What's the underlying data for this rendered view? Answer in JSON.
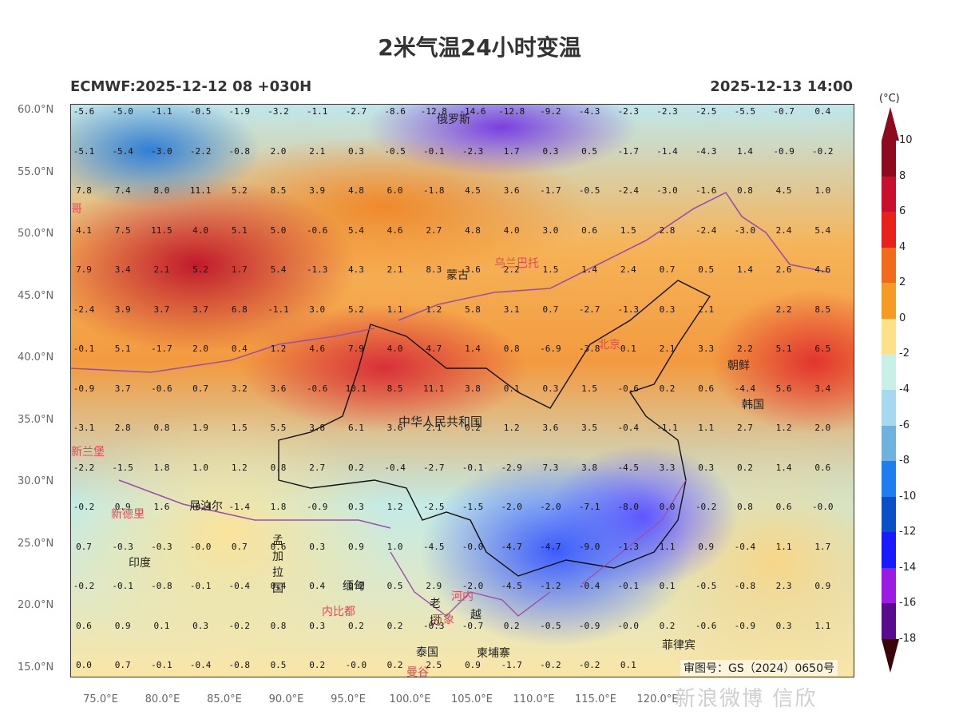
{
  "title": "2米气温24小时变温",
  "subtitle_left": "ECMWF:2025-12-12 08 +030H",
  "subtitle_right": "2025-12-13 14:00",
  "lat_labels": [
    "60.0°N",
    "55.0°N",
    "50.0°N",
    "45.0°N",
    "40.0°N",
    "35.0°N",
    "30.0°N",
    "25.0°N",
    "20.0°N",
    "15.0°N"
  ],
  "lon_labels": [
    "75.0°E",
    "80.0°E",
    "85.0°E",
    "90.0°E",
    "95.0°E",
    "100.0°E",
    "105.0°E",
    "110.0°E",
    "115.0°E",
    "120.0°E"
  ],
  "colorbar": {
    "unit": "(°C)",
    "labels": [
      "10",
      "8",
      "6",
      "4",
      "2",
      "0",
      "-2",
      "-4",
      "-6",
      "-8",
      "-10",
      "-12",
      "-14",
      "-16",
      "-18"
    ],
    "colors": [
      "#8e0a1e",
      "#c8102e",
      "#e8211c",
      "#f26a1b",
      "#f59a24",
      "#fde08a",
      "#c9f0e6",
      "#a6d8f0",
      "#6fb2e0",
      "#1e7df0",
      "#0b4fc8",
      "#1a1aff",
      "#9b1ce0",
      "#5a0a8c",
      "#7a0a14"
    ]
  },
  "place_labels": {
    "russia": "俄罗斯",
    "ulaanbaatar": "乌兰巴托",
    "mongolia": "蒙古",
    "beijing": "北京",
    "north_korea": "朝鲜",
    "south_korea": "韩国",
    "china": "中华人民共和国",
    "new_delhi": "新德里",
    "nepal": "尼泊尔",
    "new_lanbao": "新兰堡",
    "india": "印度",
    "bangladesh": "孟加拉国",
    "myanmar": "缅甸",
    "naypyidaw": "内比都",
    "hanoi": "河内",
    "laos": "老挝",
    "vientiane": "万象",
    "vietnam": "越",
    "cambodia": "柬埔寨",
    "thailand": "泰国",
    "bangkok": "曼谷",
    "philippines": "菲律宾",
    "ulaanbaatar_left": "哥"
  },
  "credit": "审图号：GS（2024）0650号",
  "watermark": "新浪微博 信欣",
  "grid_values": [
    [
      "-5.6",
      "-5.0",
      "-1.1",
      "-0.5",
      "-1.9",
      "-3.2",
      "-1.1",
      "-2.7",
      "-8.6",
      "-12.8",
      "-14.6",
      "-12.8",
      "-9.2",
      "-4.3",
      "-2.3",
      "-2.3",
      "-2.5",
      "-5.5",
      "-0.7",
      "0.4"
    ],
    [
      "-5.1",
      "-5.4",
      "-3.0",
      "-2.2",
      "-0.8",
      "2.0",
      "2.1",
      "0.3",
      "-0.5",
      "-0.1",
      "-2.3",
      "1.7",
      "0.3",
      "0.5",
      "-1.7",
      "-1.4",
      "-4.3",
      "1.4",
      "-0.9",
      "-0.2"
    ],
    [
      "7.8",
      "7.4",
      "8.0",
      "11.1",
      "5.2",
      "8.5",
      "3.9",
      "4.8",
      "6.0",
      "-1.8",
      "4.5",
      "3.6",
      "-1.7",
      "-0.5",
      "-2.4",
      "-3.0",
      "-1.6",
      "0.8",
      "4.5",
      "1.0"
    ],
    [
      "4.1",
      "7.5",
      "11.5",
      "4.0",
      "5.1",
      "5.0",
      "-0.6",
      "5.4",
      "4.6",
      "2.7",
      "4.8",
      "4.0",
      "3.0",
      "0.6",
      "1.5",
      "2.8",
      "-2.4",
      "-3.0",
      "2.4",
      "5.4"
    ],
    [
      "7.9",
      "3.4",
      "2.1",
      "5.2",
      "1.7",
      "5.4",
      "-1.3",
      "4.3",
      "2.1",
      "8.3",
      "3.6",
      "2.2",
      "1.5",
      "1.4",
      "2.4",
      "0.7",
      "0.5",
      "1.4",
      "2.6",
      "4.6"
    ],
    [
      "-2.4",
      "3.9",
      "3.7",
      "3.7",
      "6.8",
      "-1.1",
      "3.0",
      "5.2",
      "1.1",
      "1.2",
      "5.8",
      "3.1",
      "0.7",
      "-2.7",
      "-1.3",
      "0.3",
      "2.1",
      "",
      "2.2",
      "8.5"
    ],
    [
      "-0.1",
      "5.1",
      "-1.7",
      "2.0",
      "0.4",
      "1.2",
      "4.6",
      "7.9",
      "4.0",
      "4.7",
      "1.4",
      "0.8",
      "-6.9",
      "-3.8",
      "0.1",
      "2.1",
      "3.3",
      "2.2",
      "5.1",
      "6.5"
    ],
    [
      "-0.9",
      "3.7",
      "-0.6",
      "0.7",
      "3.2",
      "3.6",
      "-0.6",
      "10.1",
      "8.5",
      "11.1",
      "3.8",
      "0.1",
      "0.3",
      "1.5",
      "-0.6",
      "0.2",
      "0.6",
      "-4.4",
      "5.6",
      "3.4"
    ],
    [
      "-3.1",
      "2.8",
      "0.8",
      "1.9",
      "1.5",
      "5.5",
      "3.8",
      "6.1",
      "3.6",
      "2.1",
      "0.2",
      "1.2",
      "3.6",
      "3.5",
      "-0.4",
      "-1.1",
      "1.1",
      "2.7",
      "1.2",
      "2.0"
    ],
    [
      "-2.2",
      "-1.5",
      "1.8",
      "1.0",
      "1.2",
      "0.8",
      "2.7",
      "0.2",
      "-0.4",
      "-2.7",
      "-0.1",
      "-2.9",
      "7.3",
      "3.8",
      "-4.5",
      "3.3",
      "0.3",
      "0.2",
      "1.4",
      "0.6"
    ],
    [
      "-0.2",
      "0.9",
      "1.6",
      "-0.4",
      "-1.4",
      "1.8",
      "-0.9",
      "0.3",
      "1.2",
      "-2.5",
      "-1.5",
      "-2.0",
      "-2.0",
      "-7.1",
      "-8.0",
      "0.0",
      "-0.2",
      "0.8",
      "0.6",
      "-0.0"
    ],
    [
      "0.7",
      "-0.3",
      "-0.3",
      "-0.0",
      "0.7",
      "0.6",
      "0.3",
      "0.9",
      "1.0",
      "-4.5",
      "-0.0",
      "-4.7",
      "-4.7",
      "-9.0",
      "-1.3",
      "1.1",
      "0.9",
      "-0.4",
      "1.1",
      "1.7"
    ],
    [
      "-0.2",
      "-0.1",
      "-0.8",
      "-0.1",
      "-0.4",
      "0.4",
      "0.4",
      "0.2",
      "0.5",
      "2.9",
      "-2.0",
      "-4.5",
      "-1.2",
      "-0.4",
      "-0.1",
      "0.1",
      "-0.5",
      "-0.8",
      "2.3",
      "0.9"
    ],
    [
      "0.6",
      "0.9",
      "0.1",
      "0.3",
      "-0.2",
      "0.8",
      "0.3",
      "0.2",
      "0.2",
      "-0.3",
      "-0.7",
      "0.2",
      "-0.5",
      "-0.9",
      "-0.0",
      "0.2",
      "-0.6",
      "-0.9",
      "0.3",
      "1.1"
    ],
    [
      "0.0",
      "0.7",
      "-0.1",
      "-0.4",
      "-0.8",
      "0.5",
      "0.2",
      "-0.0",
      "0.2",
      "2.5",
      "0.9",
      "-1.7",
      "-0.2",
      "-0.2",
      "0.1",
      "",
      "",
      "",
      "",
      ""
    ]
  ]
}
